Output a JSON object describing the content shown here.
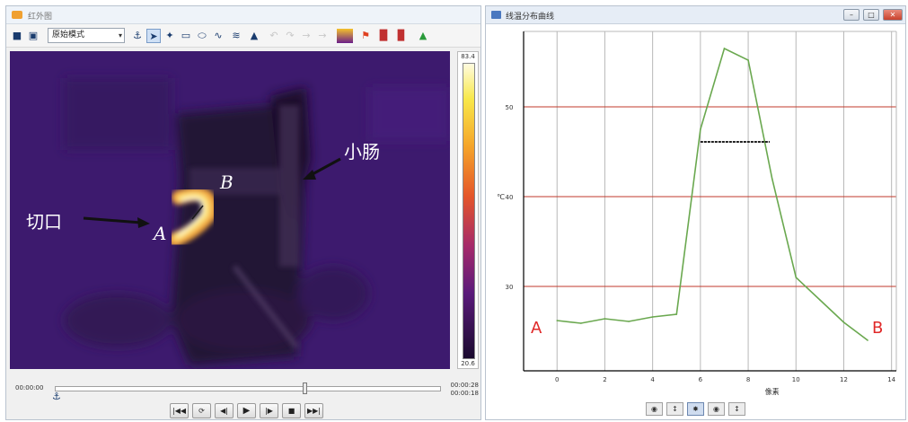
{
  "left_window": {
    "title": "红外图",
    "mode_select": "原始模式",
    "colorbar": {
      "max_label": "83.4",
      "min_label": "20.6"
    },
    "annotations": {
      "incision_label": "切口",
      "intestine_label": "小肠",
      "point_a": "A",
      "point_b": "B"
    },
    "timeline": {
      "start_time": "00:00:00",
      "end_time": "00:00:28",
      "current_time": "00:00:18"
    },
    "toolbar_icons": [
      "folder-open-icon",
      "save-icon",
      "anchor-icon",
      "pointer-icon",
      "crosshair-icon",
      "rect-icon",
      "ellipse-icon",
      "polyline-icon",
      "freehand-icon",
      "triangle-icon",
      "undo-icon",
      "redo-icon",
      "palette-icon",
      "export-icon",
      "flag-icon",
      "settings-icon"
    ],
    "playback_buttons": [
      "skip-start-icon",
      "loop-icon",
      "step-back-icon",
      "play-icon",
      "step-forward-icon",
      "stop-icon",
      "skip-end-icon"
    ]
  },
  "right_window": {
    "title": "线温分布曲线",
    "window_buttons": [
      "minimize",
      "maximize",
      "close"
    ],
    "end_labels": {
      "start": "A",
      "end": "B"
    },
    "chart_tools": [
      "zoom-out-icon",
      "fit-icon",
      "target-icon",
      "pan-icon",
      "reset-icon"
    ]
  },
  "chart_data": {
    "type": "line",
    "title": "",
    "xlabel": "像素",
    "ylabel": "℃",
    "x": [
      0,
      1,
      2,
      3,
      4,
      5,
      6,
      7,
      8,
      9,
      10,
      11,
      12,
      13
    ],
    "xticks": [
      0,
      2,
      4,
      6,
      8,
      10,
      12,
      14
    ],
    "xlim": [
      -1.4,
      14.2
    ],
    "yticks": [
      30,
      40,
      50
    ],
    "ylim": [
      20.6,
      58.4
    ],
    "grid": true,
    "series": [
      {
        "values": [
          26.2,
          25.9,
          26.4,
          26.1,
          26.6,
          26.9,
          47.5,
          56.5,
          55.2,
          42,
          31,
          28.5,
          26,
          24
        ],
        "color": "#6aa84f"
      }
    ],
    "fwhm_marker": {
      "x_start": 6,
      "x_end": 8.9,
      "y": 46.1,
      "color": "#222222"
    },
    "colors": {
      "gridline": "#c0392b",
      "axis": "#000000"
    }
  }
}
